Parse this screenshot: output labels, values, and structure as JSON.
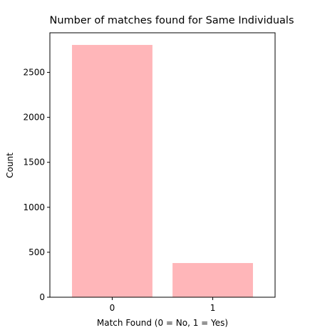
{
  "chart_data": {
    "type": "bar",
    "title": "Number of matches found for Same Individuals",
    "xlabel": "Match Found (0 = No, 1 = Yes)",
    "ylabel": "Count",
    "categories": [
      "0",
      "1"
    ],
    "values": [
      2805,
      380
    ],
    "ylim": [
      0,
      2940
    ],
    "yticks": [
      0,
      500,
      1000,
      1500,
      2000,
      2500
    ],
    "bar_color": "#ffb6b9",
    "grid": false,
    "legend": "none"
  }
}
